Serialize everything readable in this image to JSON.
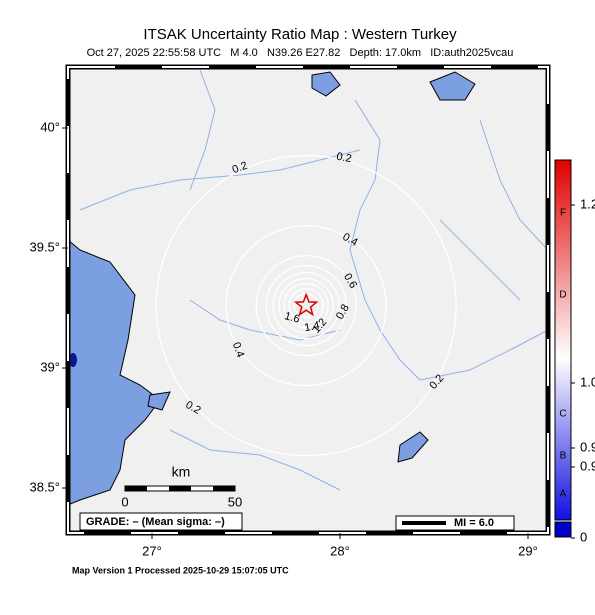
{
  "title": "ITSAK Uncertainty Ratio Map : Western Turkey",
  "subtitle": "Oct 27, 2025 22:55:58 UTC   M 4.0   N39.26 E27.82   Depth: 17.0km   ID:auth2025vcau",
  "lat_ticks": [
    {
      "value": 40,
      "label": "40°"
    },
    {
      "value": 39.5,
      "label": "39.5°"
    },
    {
      "value": 39,
      "label": "39°"
    },
    {
      "value": 38.5,
      "label": "38.5°"
    }
  ],
  "lon_ticks": [
    {
      "value": 27,
      "label": "27°"
    },
    {
      "value": 28,
      "label": "28°"
    },
    {
      "value": 29,
      "label": "29°"
    }
  ],
  "epicenter": {
    "lat": 39.26,
    "lon": 27.82
  },
  "contour_labels": [
    "0.2",
    "0.2",
    "0.2",
    "0.2",
    "0.4",
    "0.4",
    "0.6",
    "0.8",
    "1.2",
    "1.4",
    "1.6"
  ],
  "scale": {
    "unit": "km",
    "start": 0,
    "end": 50
  },
  "grade": "GRADE: – (Mean sigma: –)",
  "mi": "MI = 6.0",
  "colorbar": {
    "letters": [
      "F",
      "D",
      "C",
      "B",
      "A"
    ],
    "ticks": [
      {
        "value": 1.2,
        "label": "1.2"
      },
      {
        "value": 1.0,
        "label": "1.0"
      },
      {
        "value": 0.9,
        "label": "0.9"
      },
      {
        "value": 0.9,
        "label": "0.9"
      },
      0
    ]
  },
  "footer": "Map Version 1 Processed 2025-10-29 15:07:05 UTC"
}
